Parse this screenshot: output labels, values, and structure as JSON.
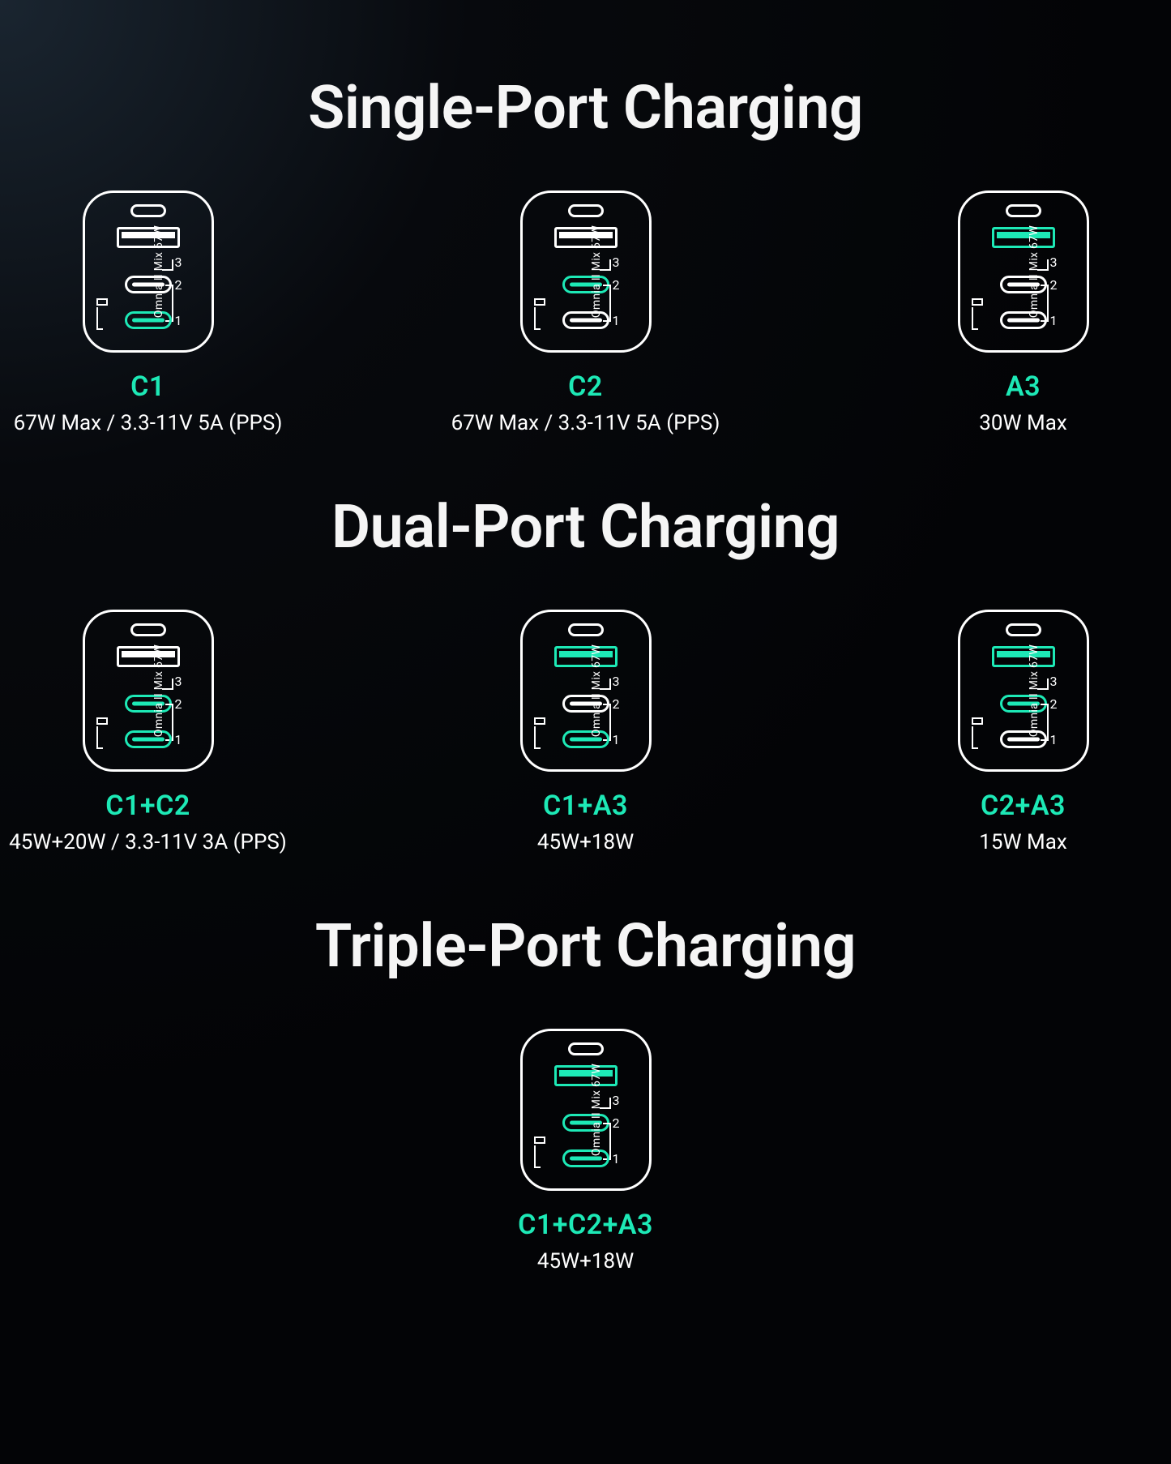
{
  "colors": {
    "accent": "#1de9b6",
    "text": "#f5f5f5",
    "line": "#ffffff",
    "background_stops": [
      "#1a2530",
      "#07090d",
      "#030406"
    ]
  },
  "charger_brand": "Omnia II Mix 67W",
  "port_numbers": {
    "a3": "3",
    "c2": "2",
    "c1": "1"
  },
  "sections": [
    {
      "title": "Single-Port Charging",
      "items": [
        {
          "label": "C1",
          "spec": "67W Max /  3.3-11V 5A (PPS)",
          "hl": {
            "c1": true,
            "c2": false,
            "a3": false
          }
        },
        {
          "label": "C2",
          "spec": "67W Max /  3.3-11V 5A (PPS)",
          "hl": {
            "c1": false,
            "c2": true,
            "a3": false
          }
        },
        {
          "label": "A3",
          "spec": "30W Max",
          "hl": {
            "c1": false,
            "c2": false,
            "a3": true
          }
        }
      ]
    },
    {
      "title": "Dual-Port Charging",
      "items": [
        {
          "label": "C1+C2",
          "spec": "45W+20W  /  3.3-11V 3A (PPS)",
          "hl": {
            "c1": true,
            "c2": true,
            "a3": false
          }
        },
        {
          "label": "C1+A3",
          "spec": "45W+18W",
          "hl": {
            "c1": true,
            "c2": false,
            "a3": true
          }
        },
        {
          "label": "C2+A3",
          "spec": "15W Max",
          "hl": {
            "c1": false,
            "c2": true,
            "a3": true
          }
        }
      ]
    },
    {
      "title": "Triple-Port Charging",
      "items": [
        {
          "label": "C1+C2+A3",
          "spec": "45W+18W",
          "hl": {
            "c1": true,
            "c2": true,
            "a3": true
          }
        }
      ]
    }
  ]
}
